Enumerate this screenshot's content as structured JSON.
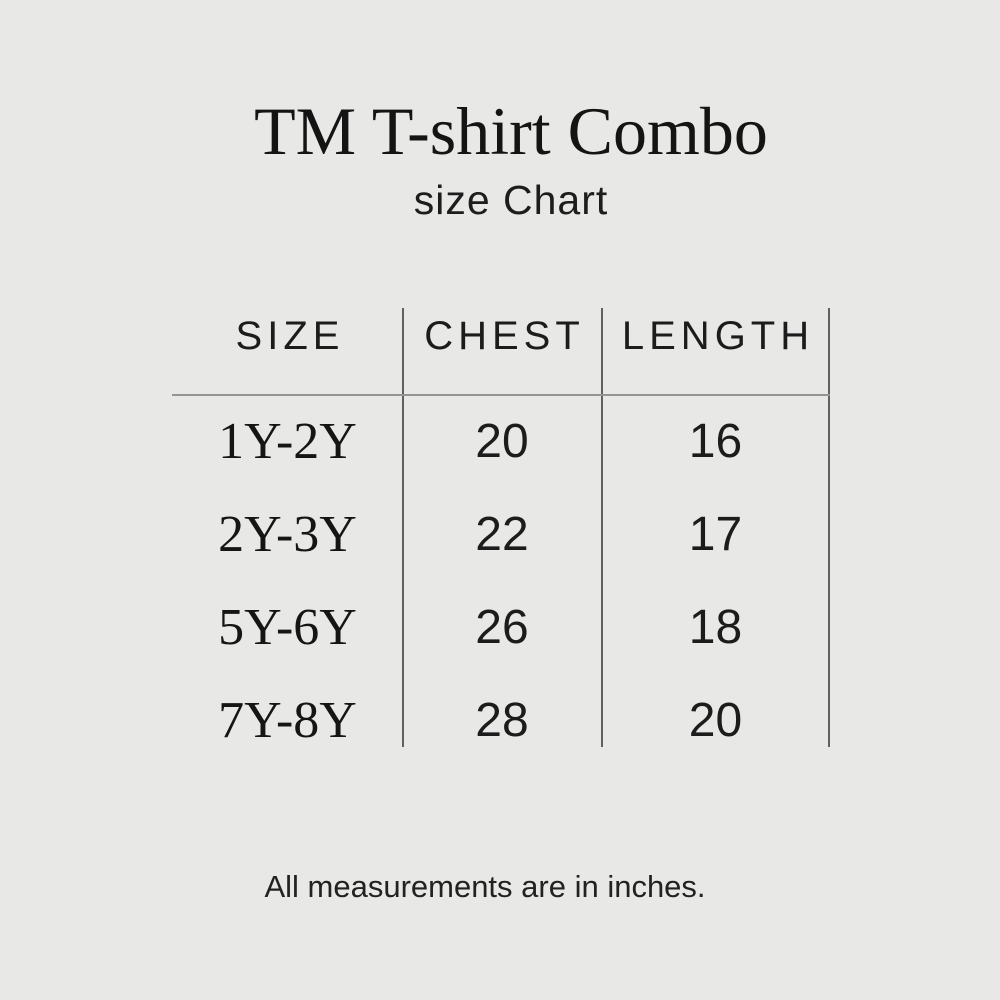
{
  "title": "TM T-shirt Combo",
  "subtitle": "size Chart",
  "chart_data": {
    "type": "table",
    "title": "TM T-shirt Combo",
    "subtitle": "size Chart",
    "columns": [
      "SIZE",
      "CHEST",
      "LENGTH"
    ],
    "rows": [
      [
        "1Y-2Y",
        20,
        16
      ],
      [
        "2Y-3Y",
        22,
        17
      ],
      [
        "5Y-6Y",
        26,
        18
      ],
      [
        "7Y-8Y",
        28,
        20
      ]
    ],
    "units": "inches",
    "note": "All measurements are in inches."
  },
  "footer_note": "All measurements are in inches.",
  "colors": {
    "background": "#e8e8e6",
    "text": "#1a1a1a",
    "vertical_rule": "#606060",
    "horizontal_rule": "#949494"
  }
}
